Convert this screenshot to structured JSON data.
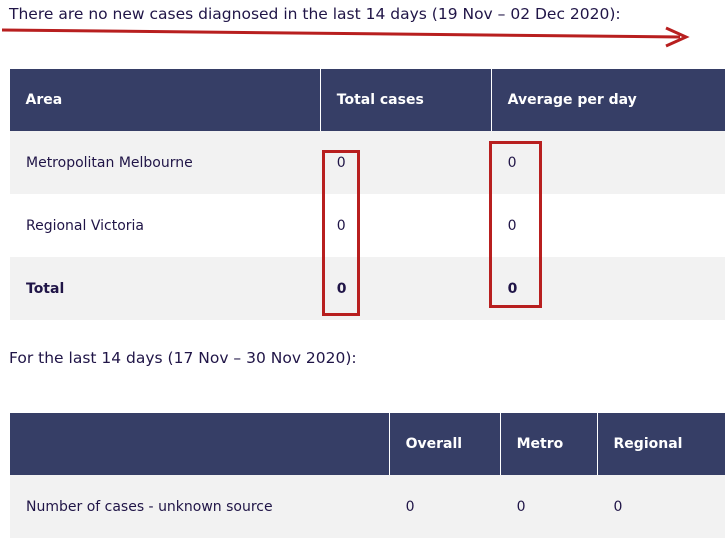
{
  "heading": "There are no new cases diagnosed in the last 14 days (19 Nov – 02 Dec 2020):",
  "table1": {
    "headers": [
      "Area",
      "Total cases",
      "Average per day"
    ],
    "rows": [
      [
        "Metropolitan Melbourne",
        "0",
        "0"
      ],
      [
        "Regional Victoria",
        "0",
        "0"
      ],
      [
        "Total",
        "0",
        "0"
      ]
    ]
  },
  "subheading": "For the last 14 days (17 Nov – 30 Nov 2020):",
  "table2": {
    "headers": [
      "",
      "Overall",
      "Metro",
      "Regional"
    ],
    "rows": [
      [
        "Number of cases - unknown source",
        "0",
        "0",
        "0"
      ]
    ]
  },
  "colors": {
    "header_bg": "#363e66",
    "annotation_red": "#b81f1f",
    "row_shade": "#f2f2f2"
  }
}
